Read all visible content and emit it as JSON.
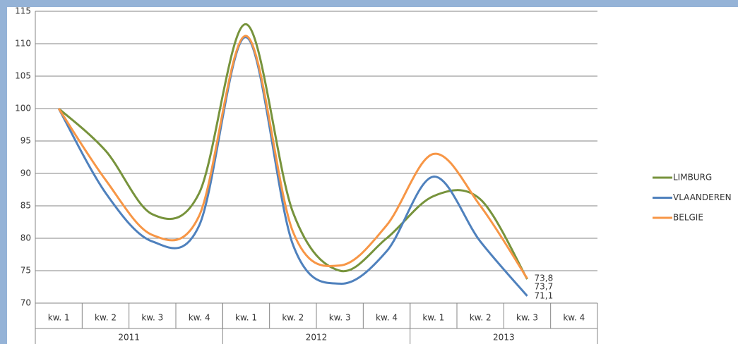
{
  "chart_data": {
    "type": "line",
    "categories": [
      "kw. 1",
      "kw. 2",
      "kw. 3",
      "kw. 4",
      "kw. 1",
      "kw. 2",
      "kw. 3",
      "kw. 4",
      "kw. 1",
      "kw. 2",
      "kw. 3",
      "kw. 4"
    ],
    "years": [
      "2011",
      "2012",
      "2013"
    ],
    "series": [
      {
        "name": "LIMBURG",
        "color": "#77933c",
        "values": [
          100,
          93.5,
          83.7,
          87,
          113,
          84,
          75,
          80,
          86.5,
          86,
          73.7,
          null
        ],
        "value_labels": [
          null,
          null,
          null,
          null,
          null,
          null,
          null,
          null,
          null,
          null,
          "73,7",
          null
        ]
      },
      {
        "name": "VLAANDEREN",
        "color": "#4f81bd",
        "values": [
          100,
          87,
          79.5,
          82,
          111,
          79,
          73,
          78,
          89.5,
          79.5,
          71.1,
          null
        ],
        "value_labels": [
          null,
          null,
          null,
          null,
          null,
          null,
          null,
          null,
          null,
          null,
          "71,1",
          null
        ]
      },
      {
        "name": "BELGIE",
        "color": "#f79646",
        "values": [
          100,
          89,
          80.5,
          83.5,
          111.2,
          81,
          75.8,
          82,
          93,
          85,
          73.8,
          null
        ],
        "value_labels": [
          null,
          null,
          null,
          null,
          null,
          null,
          null,
          null,
          null,
          null,
          "73,8",
          null
        ]
      }
    ],
    "ylim": [
      70,
      115
    ],
    "yticks": [
      70,
      75,
      80,
      85,
      90,
      95,
      100,
      105,
      110,
      115
    ],
    "grid": true,
    "smooth": true,
    "legend": "right"
  }
}
